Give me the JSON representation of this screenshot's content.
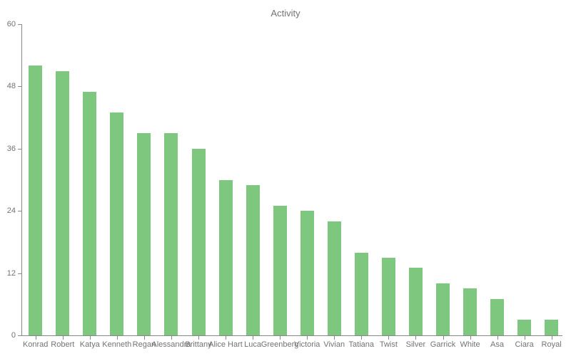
{
  "chart_data": {
    "type": "bar",
    "title": "Activity",
    "categories": [
      "Konrad",
      "Robert",
      "Katya",
      "Kenneth",
      "Regan",
      "Alessandra",
      "Brittany",
      "Alice Hart",
      "Luca",
      "Greenberg",
      "Victoria",
      "Vivian",
      "Tatiana",
      "Twist",
      "Silver",
      "Garrick",
      "White",
      "Asa",
      "Ciara",
      "Royal"
    ],
    "values": [
      52,
      51,
      47,
      43,
      39,
      39,
      36,
      30,
      29,
      25,
      24,
      22,
      16,
      15,
      13,
      10,
      9,
      7,
      3,
      3
    ],
    "xlabel": "",
    "ylabel": "",
    "ylim": [
      0,
      60
    ],
    "yticks": [
      0,
      12,
      24,
      36,
      48,
      60
    ],
    "grid": false,
    "legend": false,
    "bar_color": "#7dc87e",
    "axis_color": "#888888",
    "text_color": "#737373",
    "background": "#ffffff"
  }
}
